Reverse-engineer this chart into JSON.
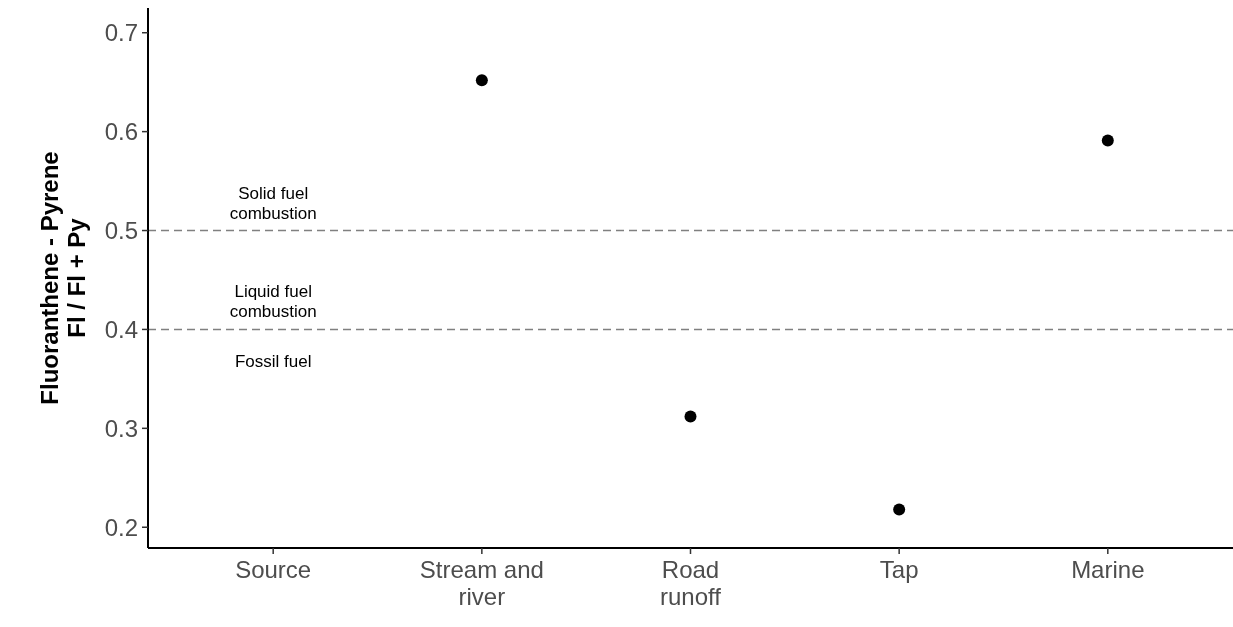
{
  "chart_data": {
    "type": "scatter",
    "ylabel": "Fluoranthene - Pyrene\nFl / Fl + Py",
    "categories": [
      "Source",
      "Stream and\nriver",
      "Road\nrunoff",
      "Tap",
      "Marine"
    ],
    "values": [
      null,
      0.652,
      0.312,
      0.218,
      0.591
    ],
    "color": "#000000",
    "marker": "circle",
    "ylim": [
      0.179,
      0.725
    ],
    "yticks": [
      0.2,
      0.3,
      0.4,
      0.5,
      0.6,
      0.7
    ],
    "grid": false,
    "ref_lines": [
      {
        "axis": "y",
        "value": 0.5,
        "color": "#808080",
        "line_style": "dashed"
      },
      {
        "axis": "y",
        "value": 0.4,
        "color": "#808080",
        "line_style": "dashed"
      }
    ],
    "annotations": [
      "Solid fuel\ncombustion",
      "Liquid fuel\ncombustion",
      "Fossil fuel"
    ]
  }
}
